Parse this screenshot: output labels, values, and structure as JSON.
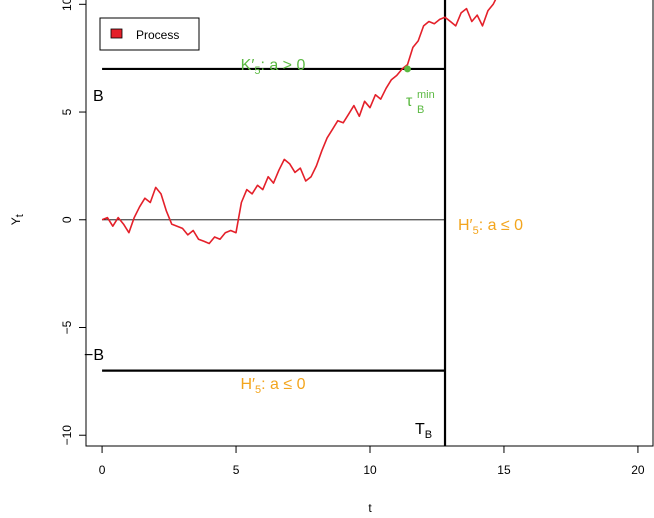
{
  "chart_data": {
    "type": "line",
    "title": "",
    "xlabel": "t",
    "ylabel": {
      "main": "Y",
      "sub": "t"
    },
    "xlim": [
      -0.6,
      20.6
    ],
    "ylim": [
      -10.5,
      10.2
    ],
    "xticks": [
      0,
      5,
      10,
      15,
      20
    ],
    "yticks": [
      -10,
      -5,
      0,
      5,
      10
    ],
    "xtick_labels": [
      "0",
      "5",
      "10",
      "15",
      "20"
    ],
    "ytick_labels": [
      "−10",
      "−5",
      "0",
      "5",
      "10"
    ],
    "grid": false,
    "legend": {
      "position": "top-left",
      "entries": [
        {
          "label": "Process",
          "color": "#e4202a"
        }
      ]
    },
    "colors": {
      "process": "#e4202a",
      "accept_region": "#5bb942",
      "reject_region": "#f3a51d",
      "boundary": "#000000",
      "zero_line": "#000000"
    },
    "boundary_B": 7,
    "stop_time_TB": 12.8,
    "tau_point": {
      "x": 11.4,
      "y": 7
    },
    "series": [
      {
        "name": "Process",
        "x": [
          0,
          0.2,
          0.4,
          0.6,
          0.8,
          1.0,
          1.2,
          1.4,
          1.6,
          1.8,
          2.0,
          2.2,
          2.4,
          2.6,
          2.8,
          3.0,
          3.2,
          3.4,
          3.6,
          3.8,
          4.0,
          4.2,
          4.4,
          4.6,
          4.8,
          5.0,
          5.2,
          5.4,
          5.6,
          5.8,
          6.0,
          6.2,
          6.4,
          6.6,
          6.8,
          7.0,
          7.2,
          7.4,
          7.6,
          7.8,
          8.0,
          8.2,
          8.4,
          8.6,
          8.8,
          9.0,
          9.2,
          9.4,
          9.6,
          9.8,
          10.0,
          10.2,
          10.4,
          10.6,
          10.8,
          11.0,
          11.2,
          11.4,
          11.6,
          11.8,
          12.0,
          12.2,
          12.4,
          12.6,
          12.8,
          13.0,
          13.2,
          13.4,
          13.6,
          13.8,
          14.0,
          14.2,
          14.4,
          14.6,
          14.8,
          15.0
        ],
        "y": [
          0,
          0.1,
          -0.3,
          0.1,
          -0.2,
          -0.6,
          0.1,
          0.6,
          1.0,
          0.8,
          1.5,
          1.2,
          0.4,
          -0.2,
          -0.3,
          -0.4,
          -0.7,
          -0.5,
          -0.9,
          -1.0,
          -1.1,
          -0.8,
          -0.9,
          -0.6,
          -0.5,
          -0.6,
          0.8,
          1.4,
          1.2,
          1.6,
          1.4,
          2.0,
          1.7,
          2.3,
          2.8,
          2.6,
          2.2,
          2.4,
          1.8,
          2.0,
          2.5,
          3.2,
          3.8,
          4.2,
          4.6,
          4.5,
          4.9,
          5.3,
          4.8,
          5.5,
          5.2,
          5.8,
          5.6,
          6.1,
          6.5,
          6.7,
          7.0,
          7.2,
          8.0,
          8.3,
          9.0,
          9.2,
          9.1,
          9.3,
          9.4,
          9.2,
          9.0,
          9.6,
          9.8,
          9.2,
          9.5,
          9.0,
          9.7,
          10.0,
          10.5,
          11.0
        ]
      }
    ],
    "annotations": {
      "K_label": {
        "main": "K′",
        "sub": "5",
        "rest": ": a > 0"
      },
      "H_upper_label": {
        "main": "H′",
        "sub": "5",
        "rest": ": a ≤ 0"
      },
      "H_lower_label": {
        "main": "H′",
        "sub": "5",
        "rest": ": a ≤ 0"
      },
      "B_label": "B",
      "negB_label": "−B",
      "TB_label": {
        "main": "T",
        "sub": "B"
      },
      "tau_label": {
        "main": "τ",
        "sub": "B",
        "sup": "min"
      }
    }
  }
}
